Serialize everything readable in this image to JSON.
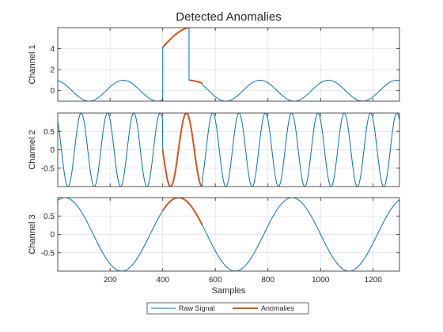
{
  "chart_data": {
    "type": "line",
    "title": "Detected Anomalies",
    "xlabel": "Samples",
    "xlim": [
      1,
      1300
    ],
    "xticks": [
      200,
      400,
      600,
      800,
      1000,
      1200
    ],
    "grid": true,
    "legend": {
      "placement": "bottom",
      "entries": [
        {
          "name": "Raw Signal",
          "color": "#0072BD"
        },
        {
          "name": "Anomalies",
          "color": "#D95319"
        }
      ]
    },
    "colors": {
      "raw": "#0072BD",
      "anomaly": "#D95319",
      "grid": "#DFDFDF",
      "axis": "#262626"
    },
    "channels": [
      {
        "ylabel": "Channel 1",
        "ylim": [
          -1,
          6
        ],
        "yticks": [
          0,
          2,
          4
        ],
        "raw": {
          "kind": "sine",
          "amplitude": 1,
          "period": 260,
          "phase_at_x": 250
        },
        "anomaly_range": [
          400,
          550
        ],
        "anomaly_segments": [
          {
            "x": [
              400,
              500
            ],
            "y": [
              4.1,
              6.0
            ],
            "shape": "concave-rise"
          },
          {
            "x": [
              500,
              550
            ],
            "y": [
              1.0,
              0.72
            ],
            "shape": "sine-continuation"
          }
        ],
        "raw_jumps": [
          {
            "x": 400,
            "from": -1.0,
            "to": 4.1
          },
          {
            "x": 500,
            "from": 6.0,
            "to": 1.0
          }
        ]
      },
      {
        "ylabel": "Channel 2",
        "ylim": [
          -1,
          1
        ],
        "yticks": [
          -0.5,
          0,
          0.5
        ],
        "raw": {
          "kind": "sine",
          "amplitude": 1,
          "period": 100,
          "phase_at_x": 90
        },
        "anomaly_range": [
          400,
          550
        ],
        "anomaly_segments": [
          {
            "kind": "sine",
            "amplitude": 1,
            "period": 120,
            "phase_at_x": 490
          }
        ]
      },
      {
        "ylabel": "Channel 3",
        "ylim": [
          -1,
          1
        ],
        "yticks": [
          -0.5,
          0,
          0.5
        ],
        "raw": {
          "kind": "sine",
          "amplitude": 1,
          "period": 432,
          "phase_at_x": 892
        },
        "anomaly_range": [
          400,
          550
        ]
      }
    ]
  }
}
